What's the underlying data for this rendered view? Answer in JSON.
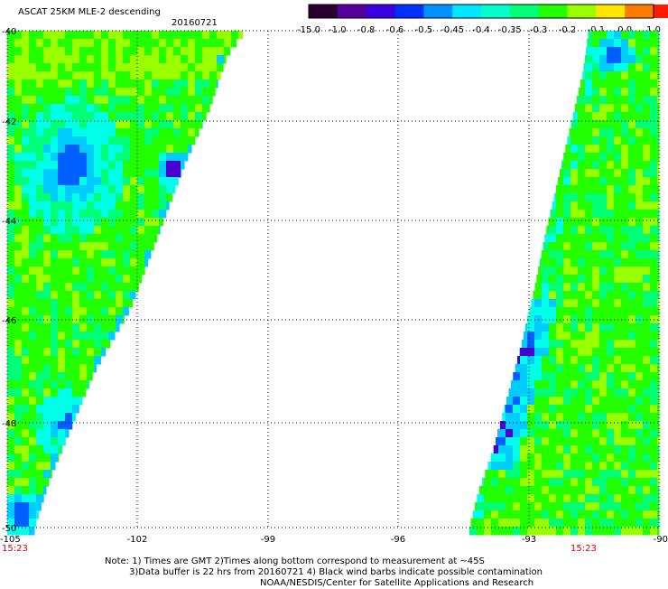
{
  "header": {
    "title": "ASCAT 25KM MLE-2 descending",
    "date": "20160721"
  },
  "colorbar": {
    "labels": [
      "-15.0",
      "-1.0",
      "-0.8",
      "-0.6",
      "-0.5",
      "-0.45",
      "-0.4",
      "-0.35",
      "-0.3",
      "-0.2",
      "-0.1",
      "0.0",
      "1.0"
    ],
    "colors": [
      "#2a0033",
      "#55009a",
      "#3a00e0",
      "#0030ff",
      "#0090ff",
      "#00e6ff",
      "#00ffcc",
      "#00ff77",
      "#22ff00",
      "#99ff00",
      "#ffe600",
      "#ff7a00",
      "#ff1a00"
    ]
  },
  "map": {
    "lat_labels": [
      "-40",
      "-42",
      "-44",
      "-46",
      "-48",
      "-50"
    ],
    "lon_labels": [
      "-105",
      "-102",
      "-99",
      "-96",
      "-93",
      "-90"
    ],
    "time_labels": [
      "15:23",
      "15:23"
    ],
    "time_color": "#e00000",
    "palette": {
      "green": "#22ff00",
      "yellowgreen": "#99ff00",
      "springgreen": "#00ff77",
      "cyan": "#00ffe6",
      "lightblue": "#00ccff",
      "blue": "#0060ff",
      "deepblue": "#0010ff",
      "violet": "#4a00d0",
      "background": "#ffffff",
      "grid": "#000000"
    }
  },
  "notes": {
    "line1": "Note: 1) Times are GMT 2)Times along bottom correspond to measurement at ~45S",
    "line2": "3)Data buffer is 22 hrs from 20160721 4) Black wind barbs indicate possible contamination",
    "line3": "NOAA/NESDIS/Center for Satellite Applications and Research"
  }
}
